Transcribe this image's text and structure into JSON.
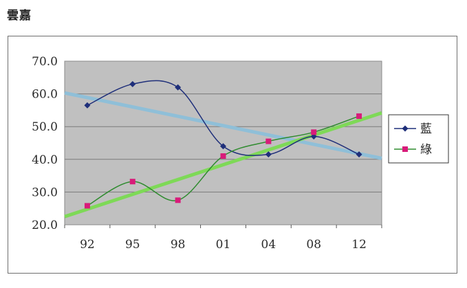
{
  "page_title": "雲嘉",
  "chart_data": {
    "type": "line",
    "categories": [
      "92",
      "95",
      "98",
      "01",
      "04",
      "08",
      "12"
    ],
    "ylim": [
      20.0,
      70.0
    ],
    "y_ticks": [
      "70.0",
      "60.0",
      "50.0",
      "40.0",
      "30.0",
      "20.0"
    ],
    "y_tick_values": [
      70,
      60,
      50,
      40,
      30,
      20
    ],
    "grid": true,
    "plot_background": "#c0c0c0",
    "legend_position": "right",
    "series": [
      {
        "name": "藍",
        "values": [
          56.5,
          63.0,
          62.0,
          44.0,
          41.5,
          47.0,
          41.5
        ],
        "color": "#1f2f7a",
        "marker": "diamond",
        "smooth": true,
        "trendline": {
          "start": 60.3,
          "end": 40.3,
          "color": "#8fbfd8"
        }
      },
      {
        "name": "綠",
        "values": [
          25.8,
          33.2,
          27.5,
          41.0,
          45.5,
          48.3,
          53.2
        ],
        "color": "#2e8b2e",
        "marker": "square",
        "marker_color": "#d81b7a",
        "smooth": true,
        "trendline": {
          "start": 22.5,
          "end": 54.2,
          "color": "#7ed957"
        }
      }
    ]
  }
}
